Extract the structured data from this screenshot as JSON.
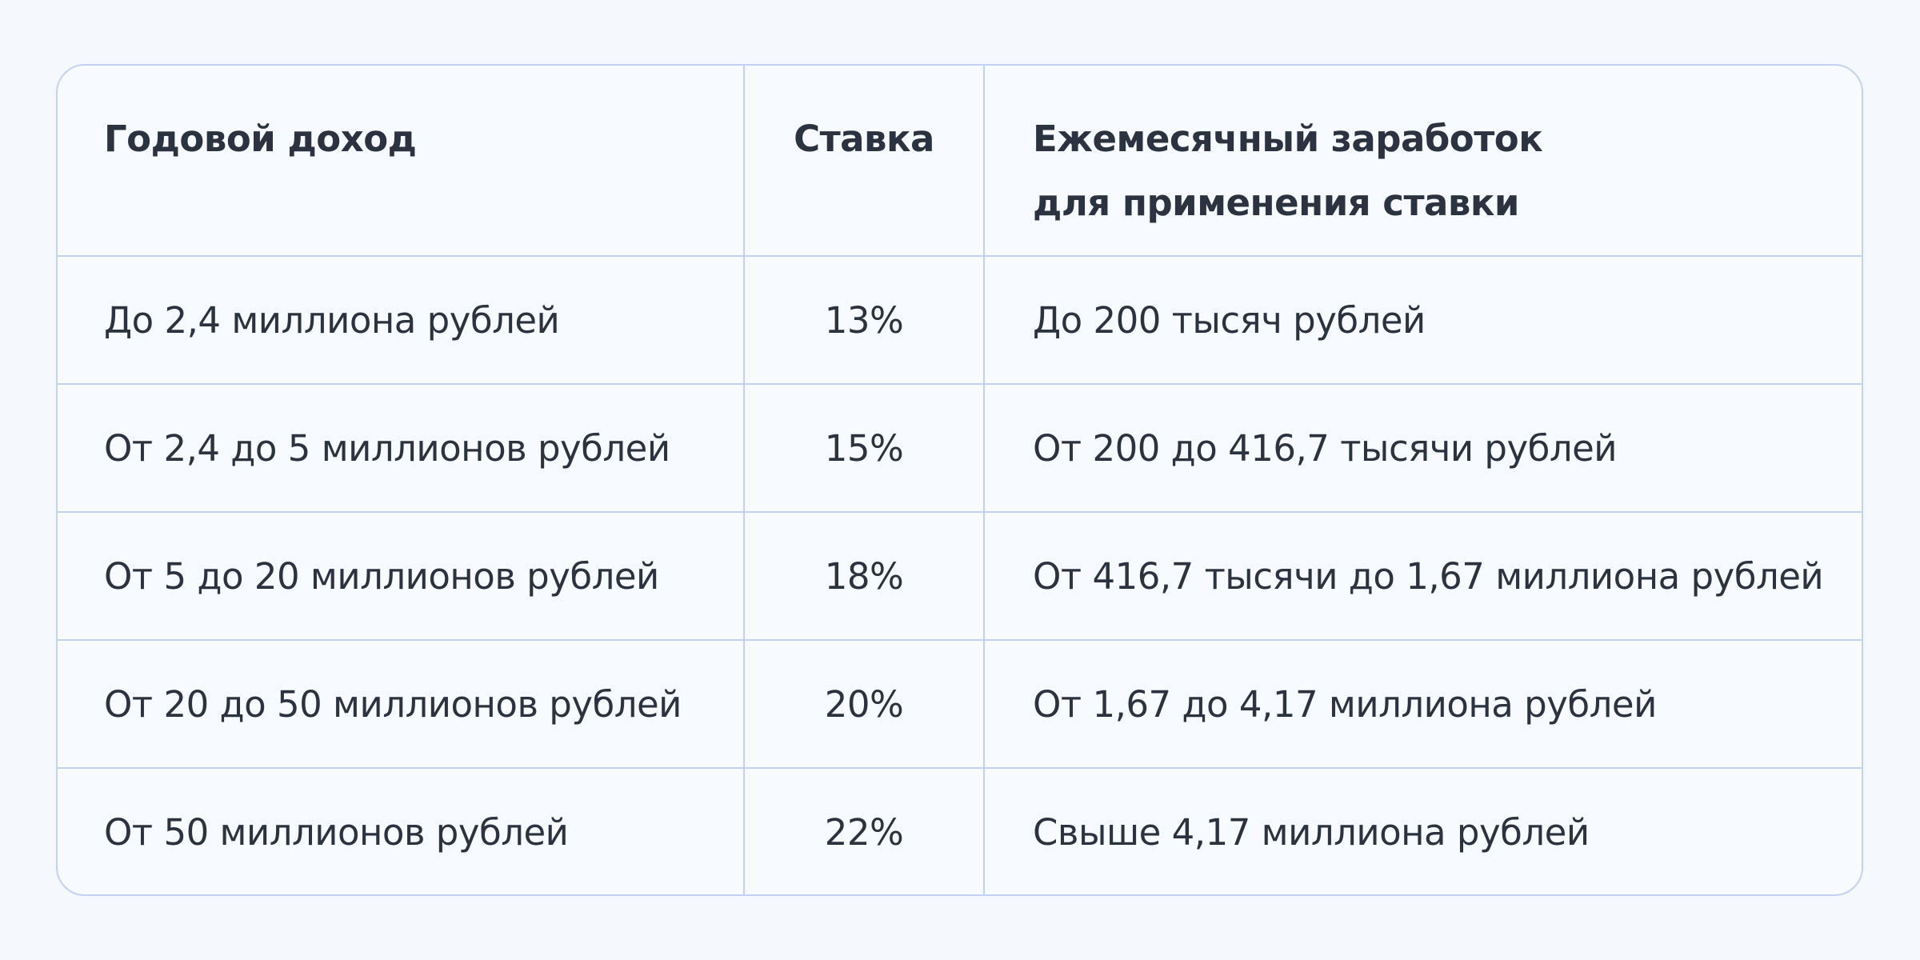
{
  "table": {
    "headers": {
      "income": "Годовой доход",
      "rate": "Ставка",
      "monthly_line1": "Ежемесячный заработок",
      "monthly_line2": "для применения ставки"
    },
    "rows": [
      {
        "income": "До 2,4 миллиона рублей",
        "rate": "13%",
        "monthly": "До 200 тысяч рублей"
      },
      {
        "income": "От 2,4 до 5 миллионов рублей",
        "rate": "15%",
        "monthly": "От 200 до 416,7 тысячи рублей"
      },
      {
        "income": "От 5 до 20 миллионов рублей",
        "rate": "18%",
        "monthly": "От 416,7 тысячи до 1,67 миллиона рублей"
      },
      {
        "income": "От 20 до 50 миллионов рублей",
        "rate": "20%",
        "monthly": "От 1,67 до 4,17 миллиона рублей"
      },
      {
        "income": "От 50 миллионов рублей",
        "rate": "22%",
        "monthly": "Свыше 4,17 миллиона рублей"
      }
    ]
  }
}
